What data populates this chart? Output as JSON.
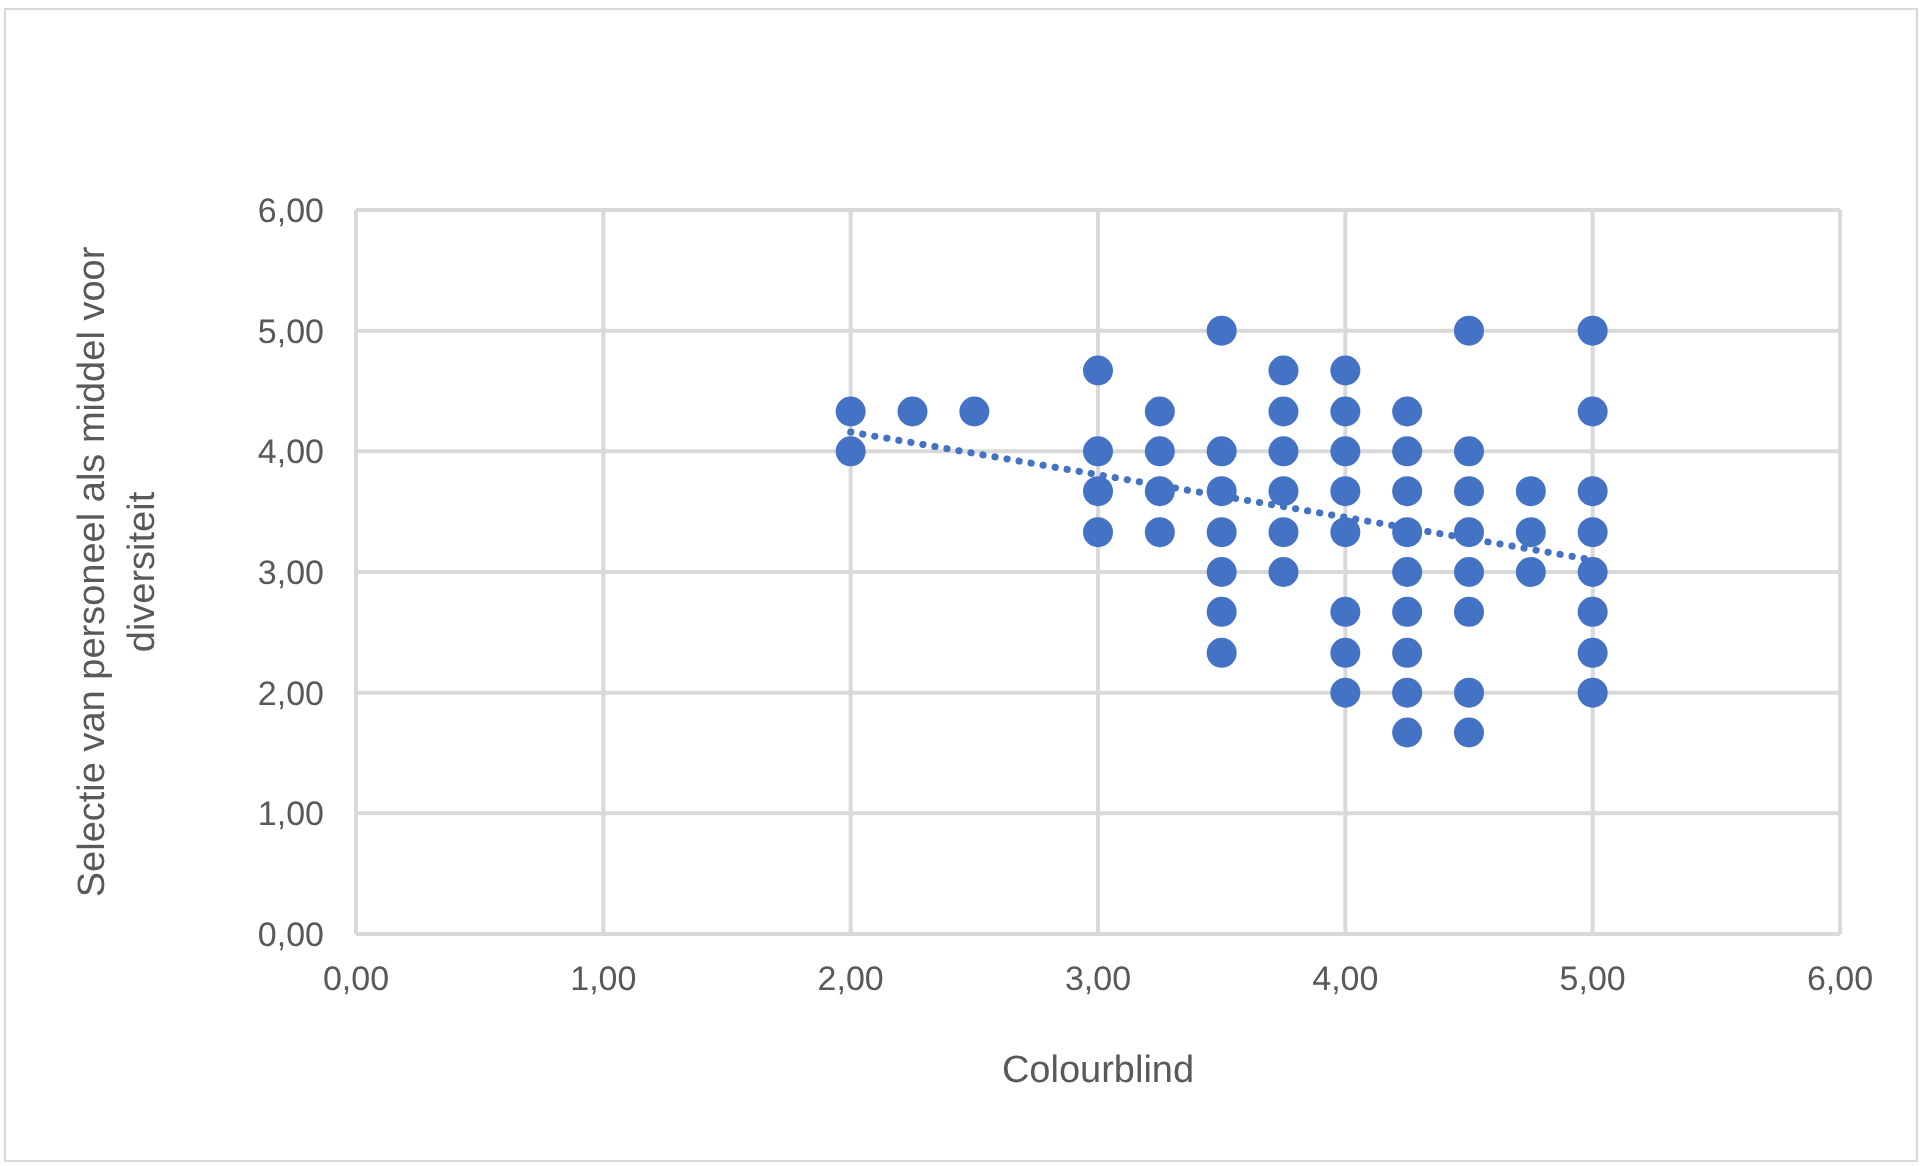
{
  "chart_data": {
    "type": "scatter",
    "xlabel": "Colourblind",
    "ylabel": "Selectie van personeel als middel voor diversiteit",
    "xlim": [
      0,
      6
    ],
    "ylim": [
      0,
      6
    ],
    "xticks": [
      {
        "value": 0,
        "label": "0,00"
      },
      {
        "value": 1,
        "label": "1,00"
      },
      {
        "value": 2,
        "label": "2,00"
      },
      {
        "value": 3,
        "label": "3,00"
      },
      {
        "value": 4,
        "label": "4,00"
      },
      {
        "value": 5,
        "label": "5,00"
      },
      {
        "value": 6,
        "label": "6,00"
      }
    ],
    "yticks": [
      {
        "value": 0,
        "label": "0,00"
      },
      {
        "value": 1,
        "label": "1,00"
      },
      {
        "value": 2,
        "label": "2,00"
      },
      {
        "value": 3,
        "label": "3,00"
      },
      {
        "value": 4,
        "label": "4,00"
      },
      {
        "value": 5,
        "label": "5,00"
      },
      {
        "value": 6,
        "label": "6,00"
      }
    ],
    "grid": true,
    "legend": false,
    "marker": "circle",
    "series": [
      {
        "color": "#4472c4",
        "x": [
          2,
          2,
          2.25,
          2.5,
          3,
          3,
          3,
          3,
          3.25,
          3.25,
          3.25,
          3.25,
          3.5,
          3.5,
          3.5,
          3.5,
          3.5,
          3.5,
          3.5,
          3.75,
          3.75,
          3.75,
          3.75,
          3.75,
          3.75,
          4,
          4,
          4,
          4,
          4,
          4,
          4,
          4,
          4.25,
          4.25,
          4.25,
          4.25,
          4.25,
          4.25,
          4.25,
          4.25,
          4.25,
          4.5,
          4.5,
          4.5,
          4.5,
          4.5,
          4.5,
          4.5,
          4.5,
          4.75,
          4.75,
          4.75,
          5,
          5,
          5,
          5,
          5,
          5,
          5,
          5
        ],
        "values": [
          4.33,
          4,
          4.33,
          4.33,
          4.67,
          4,
          3.67,
          3.33,
          4.33,
          4,
          3.67,
          3.33,
          5,
          4,
          3.67,
          3.33,
          3,
          2.67,
          2.33,
          4.67,
          4.33,
          4,
          3.67,
          3.33,
          3,
          4.67,
          4.33,
          4,
          3.67,
          3.33,
          2.67,
          2.33,
          2,
          4.33,
          4,
          3.67,
          3.33,
          3,
          2.67,
          2.33,
          2,
          1.67,
          5,
          4,
          3.67,
          3.33,
          3,
          2.67,
          2,
          1.67,
          3.67,
          3.33,
          3,
          5,
          4.33,
          3.67,
          3.33,
          3,
          2.67,
          2.33,
          2
        ]
      },
      {
        "type": "line",
        "color": "#4472c4",
        "line_style": "dotted",
        "marker": "none",
        "x": [
          2,
          5
        ],
        "values": [
          4.16,
          3.1
        ]
      }
    ]
  }
}
